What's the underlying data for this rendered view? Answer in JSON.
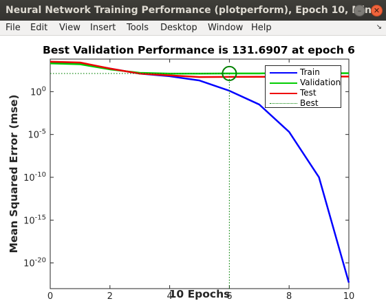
{
  "window": {
    "title": "Neural Network Training Performance (plotperform), Epoch 10, Min...",
    "minimize_glyph": "–",
    "maximize_glyph": "□",
    "close_glyph": "✕"
  },
  "menu": {
    "items": [
      "File",
      "Edit",
      "View",
      "Insert",
      "Tools",
      "Desktop",
      "Window",
      "Help"
    ],
    "dock_glyph": "↘"
  },
  "colors": {
    "train": "#0000ff",
    "validation": "#00cc00",
    "test": "#ee0000",
    "best": "#008000"
  },
  "chart_data": {
    "type": "line",
    "title": "Best Validation Performance is 131.6907 at epoch 6",
    "xlabel": "10 Epochs",
    "ylabel": "Mean Squared Error  (mse)",
    "yscale": "log",
    "xlim": [
      0,
      10
    ],
    "ylim_exponent": [
      -23,
      3.8
    ],
    "x_ticks": [
      "0",
      "2",
      "4",
      "6",
      "8",
      "10"
    ],
    "y_ticks": [
      {
        "base": "10",
        "exp": "0",
        "value": 0
      },
      {
        "base": "10",
        "exp": "-5",
        "value": -5
      },
      {
        "base": "10",
        "exp": "-10",
        "value": -10
      },
      {
        "base": "10",
        "exp": "-15",
        "value": -15
      },
      {
        "base": "10",
        "exp": "-20",
        "value": -20
      }
    ],
    "grid": false,
    "legend_position": "top-right",
    "series": [
      {
        "name": "Train",
        "x": [
          0,
          1,
          2,
          3,
          4,
          5,
          6,
          7,
          8,
          9,
          10
        ],
        "log10_y": [
          3.4,
          3.3,
          2.7,
          2.1,
          1.8,
          1.3,
          0.1,
          -1.5,
          -4.7,
          -10.0,
          -22.3
        ]
      },
      {
        "name": "Validation",
        "x": [
          0,
          1,
          2,
          3,
          4,
          5,
          6,
          7,
          8,
          9,
          10
        ],
        "log10_y": [
          3.3,
          3.2,
          2.6,
          2.2,
          2.1,
          2.1,
          2.12,
          2.13,
          2.14,
          2.15,
          2.16
        ]
      },
      {
        "name": "Test",
        "x": [
          0,
          1,
          2,
          3,
          4,
          5,
          6,
          7,
          8,
          9,
          10
        ],
        "log10_y": [
          3.5,
          3.4,
          2.7,
          2.1,
          1.9,
          1.7,
          1.72,
          1.73,
          1.74,
          1.75,
          1.76
        ]
      }
    ],
    "best": {
      "name": "Best",
      "epoch": 6,
      "log10_y": 2.12
    }
  }
}
